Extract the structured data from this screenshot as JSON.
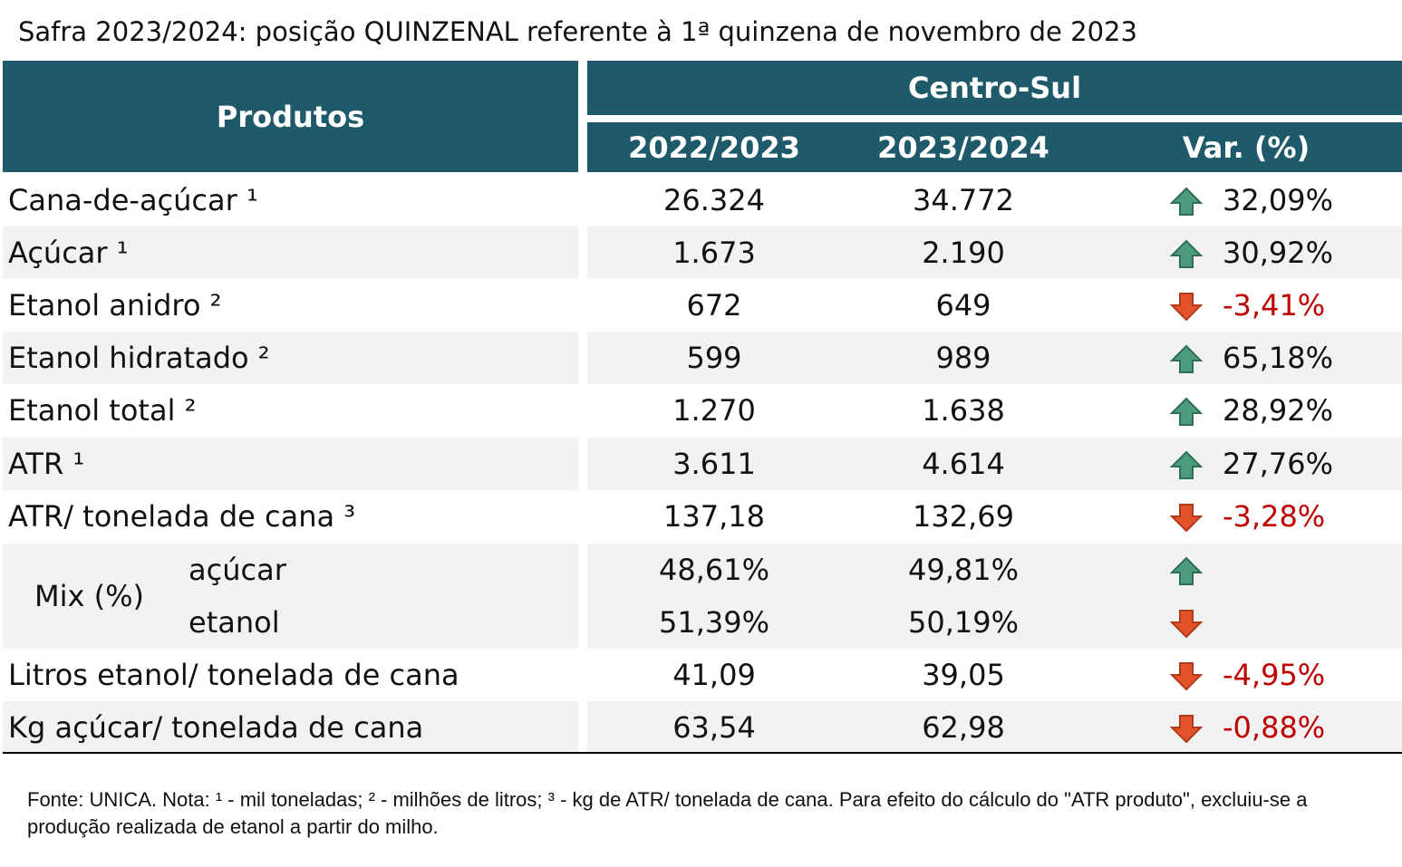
{
  "title": "Safra 2023/2024: posição QUINZENAL referente à 1ª quinzena de novembro de 2023",
  "table": {
    "header": {
      "products": "Produtos",
      "region": "Centro-Sul",
      "columns": [
        "2022/2023",
        "2023/2024",
        "Var. (%)"
      ]
    },
    "rows": [
      [
        "Cana-de-açúcar ¹",
        "26.324",
        "34.772",
        "32,09%"
      ],
      [
        "Açúcar ¹",
        "1.673",
        "2.190",
        "30,92%"
      ],
      [
        "Etanol anidro ²",
        "672",
        "649",
        "-3,41%"
      ],
      [
        "Etanol hidratado ²",
        "599",
        "989",
        "65,18%"
      ],
      [
        "Etanol total ²",
        "1.270",
        "1.638",
        "28,92%"
      ],
      [
        "ATR ¹",
        "3.611",
        "4.614",
        "27,76%"
      ],
      [
        "ATR/ tonelada de cana ³",
        "137,18",
        "132,69",
        "-3,28%"
      ]
    ],
    "mix": {
      "label": "Mix (%)",
      "rows": [
        [
          "açúcar",
          "48,61%",
          "49,81%"
        ],
        [
          "etanol",
          "51,39%",
          "50,19%"
        ]
      ]
    },
    "rows_after": [
      [
        "Litros etanol/ tonelada de cana",
        "41,09",
        "39,05",
        "-4,95%"
      ],
      [
        "Kg açúcar/ tonelada de cana",
        "63,54",
        "62,98",
        "-0,88%"
      ]
    ]
  },
  "footnote": "Fonte: UNICA. Nota: ¹ - mil toneladas; ² - milhões de litros; ³ - kg de ATR/ tonelada de cana. Para efeito do cálculo do \"ATR produto\", excluiu-se a produção realizada de etanol a partir do milho."
}
